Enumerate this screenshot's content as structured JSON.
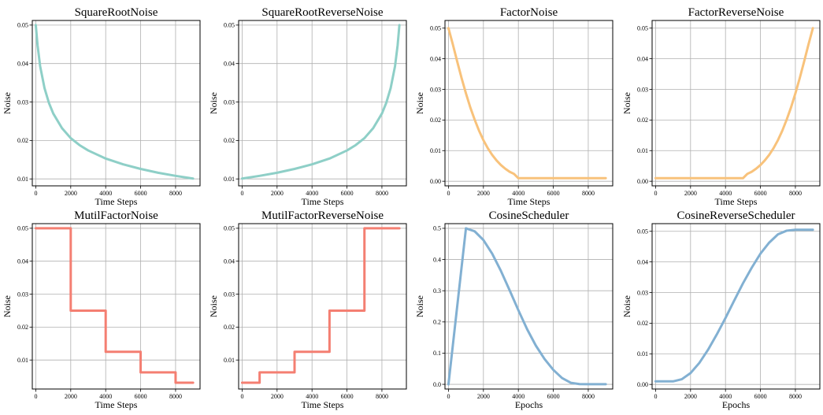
{
  "chart_data": [
    {
      "type": "line",
      "title": "SquareRootNoise",
      "xlabel": "Time Steps",
      "ylabel": "Noise",
      "xlim": [
        -200,
        9400
      ],
      "ylim": [
        0.0082,
        0.0512
      ],
      "xticks": [
        0,
        2000,
        4000,
        6000,
        8000
      ],
      "xtick_labels": [
        "0",
        "2000",
        "4000",
        "6000",
        "8000"
      ],
      "yticks": [
        0.01,
        0.02,
        0.03,
        0.04,
        0.05
      ],
      "ytick_labels": [
        "0.01",
        "0.02",
        "0.03",
        "0.04",
        "0.05"
      ],
      "grid": true,
      "series": [
        {
          "color": "#8ecfc7",
          "x": [
            0,
            100,
            250,
            500,
            750,
            1000,
            1500,
            2000,
            2500,
            3000,
            4000,
            5000,
            6000,
            7000,
            8000,
            9000
          ],
          "y": [
            0.05,
            0.0448,
            0.0393,
            0.0336,
            0.0298,
            0.027,
            0.0232,
            0.0206,
            0.0188,
            0.0174,
            0.0153,
            0.0138,
            0.0126,
            0.0116,
            0.0108,
            0.0101
          ]
        }
      ]
    },
    {
      "type": "line",
      "title": "SquareRootReverseNoise",
      "xlabel": "Time Steps",
      "ylabel": "Noise",
      "xlim": [
        -200,
        9400
      ],
      "ylim": [
        0.0082,
        0.0512
      ],
      "xticks": [
        0,
        2000,
        4000,
        6000,
        8000
      ],
      "xtick_labels": [
        "0",
        "2000",
        "4000",
        "6000",
        "8000"
      ],
      "yticks": [
        0.01,
        0.02,
        0.03,
        0.04,
        0.05
      ],
      "ytick_labels": [
        "0.01",
        "0.02",
        "0.03",
        "0.04",
        "0.05"
      ],
      "grid": true,
      "series": [
        {
          "color": "#8ecfc7",
          "x": [
            0,
            1000,
            2000,
            3000,
            4000,
            5000,
            6000,
            6500,
            7000,
            7500,
            8000,
            8250,
            8500,
            8750,
            8900,
            9000
          ],
          "y": [
            0.0101,
            0.0108,
            0.0116,
            0.0126,
            0.0138,
            0.0153,
            0.0174,
            0.0188,
            0.0206,
            0.0232,
            0.027,
            0.0298,
            0.0336,
            0.0393,
            0.0448,
            0.05
          ]
        }
      ]
    },
    {
      "type": "line",
      "title": "FactorNoise",
      "xlabel": "Time Steps",
      "ylabel": "Noise",
      "xlim": [
        -200,
        9400
      ],
      "ylim": [
        -0.0015,
        0.0525
      ],
      "xticks": [
        0,
        2000,
        4000,
        6000,
        8000
      ],
      "xtick_labels": [
        "0",
        "2000",
        "4000",
        "6000",
        "8000"
      ],
      "yticks": [
        0,
        0.01,
        0.02,
        0.03,
        0.04,
        0.05
      ],
      "ytick_labels": [
        "0.00",
        "0.01",
        "0.02",
        "0.03",
        "0.04",
        "0.05"
      ],
      "grid": true,
      "series": [
        {
          "color": "#f8c27b",
          "x": [
            0,
            250,
            500,
            750,
            1000,
            1250,
            1500,
            1750,
            2000,
            2250,
            2500,
            2750,
            3000,
            3250,
            3500,
            3750,
            4000,
            5000,
            6000,
            7000,
            8000,
            9000
          ],
          "y": [
            0.05,
            0.0447,
            0.0391,
            0.0337,
            0.0287,
            0.0241,
            0.0201,
            0.0165,
            0.0134,
            0.0108,
            0.0086,
            0.0068,
            0.0053,
            0.0041,
            0.0031,
            0.0024,
            0.001,
            0.001,
            0.001,
            0.001,
            0.001,
            0.001
          ]
        }
      ]
    },
    {
      "type": "line",
      "title": "FactorReverseNoise",
      "xlabel": "Time Steps",
      "ylabel": "Noise",
      "xlim": [
        -200,
        9400
      ],
      "ylim": [
        -0.0015,
        0.0525
      ],
      "xticks": [
        0,
        2000,
        4000,
        6000,
        8000
      ],
      "xtick_labels": [
        "0",
        "2000",
        "4000",
        "6000",
        "8000"
      ],
      "yticks": [
        0,
        0.01,
        0.02,
        0.03,
        0.04,
        0.05
      ],
      "ytick_labels": [
        "0.00",
        "0.01",
        "0.02",
        "0.03",
        "0.04",
        "0.05"
      ],
      "grid": true,
      "series": [
        {
          "color": "#f8c27b",
          "x": [
            0,
            1000,
            2000,
            3000,
            4000,
            5000,
            5250,
            5500,
            5750,
            6000,
            6250,
            6500,
            6750,
            7000,
            7250,
            7500,
            7750,
            8000,
            8250,
            8500,
            8750,
            9000
          ],
          "y": [
            0.001,
            0.001,
            0.001,
            0.001,
            0.001,
            0.001,
            0.0024,
            0.0031,
            0.0041,
            0.0053,
            0.0068,
            0.0086,
            0.0108,
            0.0134,
            0.0165,
            0.0201,
            0.0241,
            0.0287,
            0.0337,
            0.0391,
            0.0447,
            0.05
          ]
        }
      ]
    },
    {
      "type": "line",
      "title": "MutilFactorNoise",
      "xlabel": "Time Steps",
      "ylabel": "Noise",
      "xlim": [
        -200,
        9400
      ],
      "ylim": [
        0.0012,
        0.0514
      ],
      "xticks": [
        0,
        2000,
        4000,
        6000,
        8000
      ],
      "xtick_labels": [
        "0",
        "2000",
        "4000",
        "6000",
        "8000"
      ],
      "yticks": [
        0.01,
        0.02,
        0.03,
        0.04,
        0.05
      ],
      "ytick_labels": [
        "0.01",
        "0.02",
        "0.03",
        "0.04",
        "0.05"
      ],
      "grid": true,
      "series": [
        {
          "color": "#f47f72",
          "x": [
            0,
            2000,
            2000,
            4000,
            4000,
            6000,
            6000,
            8000,
            8000,
            9000
          ],
          "y": [
            0.05,
            0.05,
            0.025,
            0.025,
            0.0125,
            0.0125,
            0.00625,
            0.00625,
            0.003125,
            0.003125
          ]
        }
      ]
    },
    {
      "type": "line",
      "title": "MutilFactorReverseNoise",
      "xlabel": "Time Steps",
      "ylabel": "Noise",
      "xlim": [
        -200,
        9400
      ],
      "ylim": [
        0.0012,
        0.0514
      ],
      "xticks": [
        0,
        2000,
        4000,
        6000,
        8000
      ],
      "xtick_labels": [
        "0",
        "2000",
        "4000",
        "6000",
        "8000"
      ],
      "yticks": [
        0.01,
        0.02,
        0.03,
        0.04,
        0.05
      ],
      "ytick_labels": [
        "0.01",
        "0.02",
        "0.03",
        "0.04",
        "0.05"
      ],
      "grid": true,
      "series": [
        {
          "color": "#f47f72",
          "x": [
            0,
            1000,
            1000,
            3000,
            3000,
            5000,
            5000,
            7000,
            7000,
            9000
          ],
          "y": [
            0.003125,
            0.003125,
            0.00625,
            0.00625,
            0.0125,
            0.0125,
            0.025,
            0.025,
            0.05,
            0.05
          ]
        }
      ]
    },
    {
      "type": "line",
      "title": "CosineScheduler",
      "xlabel": "Epochs",
      "ylabel": "Noise",
      "xlim": [
        -200,
        9400
      ],
      "ylim": [
        -0.015,
        0.515
      ],
      "xticks": [
        0,
        2000,
        4000,
        6000,
        8000
      ],
      "xtick_labels": [
        "0",
        "2000",
        "4000",
        "6000",
        "8000"
      ],
      "yticks": [
        0,
        0.1,
        0.2,
        0.3,
        0.4,
        0.5
      ],
      "ytick_labels": [
        "0.0",
        "0.1",
        "0.2",
        "0.3",
        "0.4",
        "0.5"
      ],
      "grid": true,
      "series": [
        {
          "color": "#82b0d2",
          "x": [
            0,
            1000,
            1500,
            2000,
            2500,
            3000,
            3500,
            4000,
            4500,
            5000,
            5500,
            6000,
            6500,
            7000,
            7500,
            8000,
            9000
          ],
          "y": [
            0,
            0.5,
            0.4904,
            0.4625,
            0.419,
            0.3637,
            0.3015,
            0.2375,
            0.1768,
            0.1241,
            0.0811,
            0.0463,
            0.0202,
            0.005,
            0.0008,
            0.0005,
            0.0005
          ]
        }
      ]
    },
    {
      "type": "line",
      "title": "CosineReverseScheduler",
      "xlabel": "Epochs",
      "ylabel": "Noise",
      "xlim": [
        -200,
        9400
      ],
      "ylim": [
        -0.0015,
        0.0525
      ],
      "xticks": [
        0,
        2000,
        4000,
        6000,
        8000
      ],
      "xtick_labels": [
        "0",
        "2000",
        "4000",
        "6000",
        "8000"
      ],
      "yticks": [
        0,
        0.01,
        0.02,
        0.03,
        0.04,
        0.05
      ],
      "ytick_labels": [
        "0.00",
        "0.01",
        "0.02",
        "0.03",
        "0.04",
        "0.05"
      ],
      "grid": true,
      "series": [
        {
          "color": "#82b0d2",
          "x": [
            0,
            1000,
            1500,
            2000,
            2500,
            3000,
            3500,
            4000,
            4500,
            5000,
            5500,
            6000,
            6500,
            7000,
            7500,
            8000,
            8500,
            9000
          ],
          "y": [
            0.001,
            0.001,
            0.0017,
            0.0037,
            0.007,
            0.0113,
            0.0163,
            0.0217,
            0.0274,
            0.033,
            0.0381,
            0.0427,
            0.0463,
            0.049,
            0.0502,
            0.0505,
            0.0505,
            0.0505
          ]
        }
      ]
    }
  ]
}
